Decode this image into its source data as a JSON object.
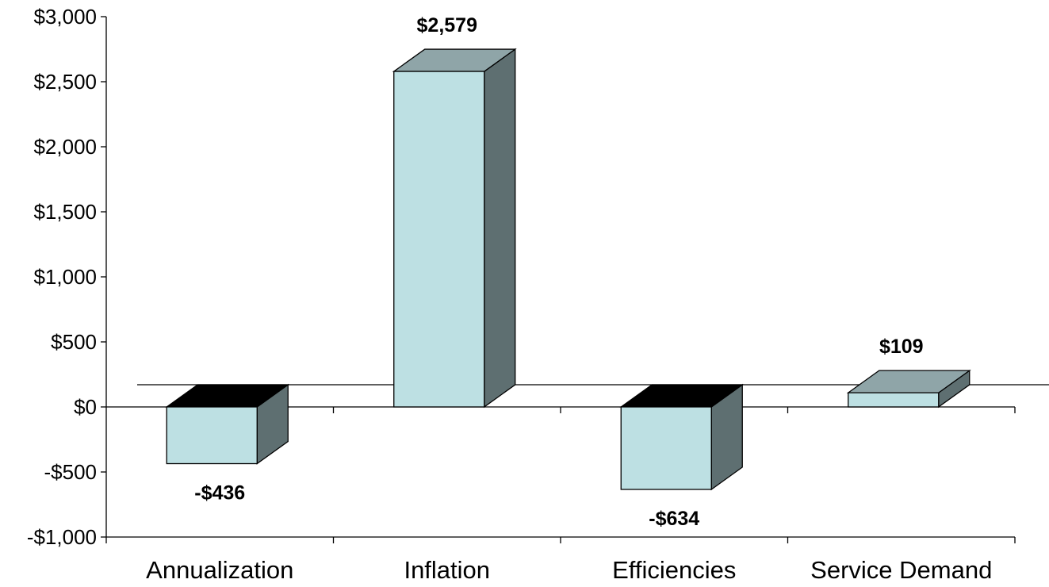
{
  "chart_data": {
    "type": "bar",
    "title": "",
    "xlabel": "",
    "ylabel": "",
    "categories": [
      "Annualization",
      "Inflation",
      "Efficiencies",
      "Service Demand"
    ],
    "values": [
      -436,
      2579,
      -634,
      109
    ],
    "data_labels": [
      "-$436",
      "$2,579",
      "-$634",
      "$109"
    ],
    "ylim": [
      -1000,
      3000
    ],
    "y_ticks": [
      3000,
      2500,
      2000,
      1500,
      1000,
      500,
      0,
      -500,
      -1000
    ],
    "y_tick_labels": [
      "$3,000",
      "$2,500",
      "$2,000",
      "$1,500",
      "$1,000",
      "$500",
      "$0",
      "-$500",
      "-$1,000"
    ],
    "grid": false,
    "legend": "none",
    "style": "3d-column",
    "colors": {
      "front": "#bde0e3",
      "side": "#5e6f71",
      "top": "#8fa5a8",
      "top_negative": "#000000",
      "axis": "#000000",
      "label": "#000000"
    }
  }
}
